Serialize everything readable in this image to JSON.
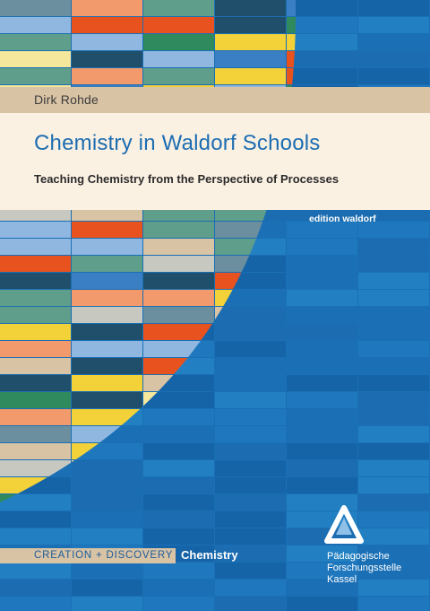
{
  "cover": {
    "author": "Dirk Rohde",
    "title": "Chemistry in Waldorf Schools",
    "subtitle": "Teaching Chemistry from the Perspective of Processes",
    "edition": "edition waldorf",
    "series": "CREATION + DISCOVERY",
    "series_subject": "Chemistry",
    "publisher": {
      "line1": "Pädagogische",
      "line2": "Forschungsstelle",
      "line3": "Kassel"
    }
  },
  "colors": {
    "background_blue": "#1a6fb5",
    "title_blue": "#1c6db1",
    "band_tan": "#d8c3a5",
    "panel_cream": "#fbf1e3",
    "mosaic_palette": [
      "#f2d238",
      "#e8521f",
      "#f29a6b",
      "#2f8a5e",
      "#5e9e8a",
      "#1f4f6a",
      "#8fb7e0",
      "#d8c3a5",
      "#f5e89c",
      "#6c8fa0",
      "#3a7fc4",
      "#c7c9c0",
      "#1a6fb5"
    ]
  }
}
